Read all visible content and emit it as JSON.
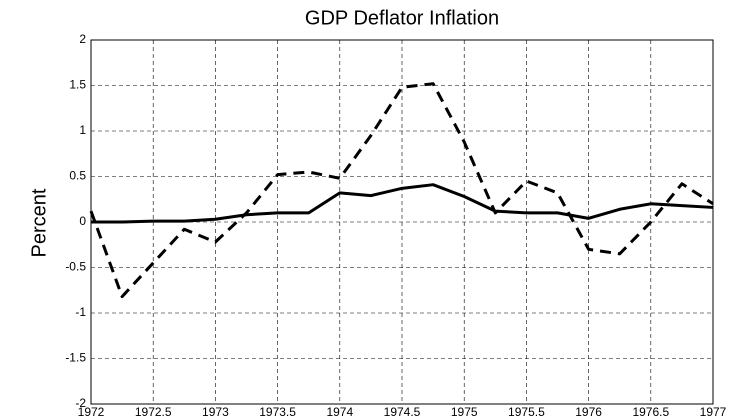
{
  "chart_data": {
    "type": "line",
    "title": "GDP Deflator Inflation",
    "y_label": "Percent",
    "x": [
      1972,
      1972.25,
      1972.5,
      1972.75,
      1973,
      1973.25,
      1973.5,
      1973.75,
      1974,
      1974.25,
      1974.5,
      1974.75,
      1975,
      1975.25,
      1975.5,
      1975.75,
      1976,
      1976.25,
      1976.5,
      1976.75,
      1977
    ],
    "series": [
      {
        "color": "#000000",
        "linestyle": "solid",
        "values": [
          0.0,
          0.0,
          0.01,
          0.01,
          0.03,
          0.08,
          0.1,
          0.1,
          0.32,
          0.29,
          0.37,
          0.41,
          0.28,
          0.12,
          0.1,
          0.1,
          0.04,
          0.14,
          0.2,
          0.18,
          0.16
        ]
      },
      {
        "color": "#000000",
        "linestyle": "dashed",
        "values": [
          0.12,
          -0.82,
          -0.45,
          -0.08,
          -0.22,
          0.1,
          0.52,
          0.55,
          0.48,
          0.95,
          1.48,
          1.52,
          0.88,
          0.1,
          0.45,
          0.32,
          -0.3,
          -0.35,
          0.0,
          0.42,
          0.2
        ]
      }
    ],
    "xlim": [
      1972,
      1977
    ],
    "xticks": [
      1972,
      1972.5,
      1973,
      1973.5,
      1974,
      1974.5,
      1975,
      1975.5,
      1976,
      1976.5,
      1977
    ],
    "ylim": [
      -2,
      2
    ],
    "yticks": [
      -2,
      -1.5,
      -1,
      -0.5,
      0,
      0.5,
      1,
      1.5,
      2
    ],
    "grid": true
  }
}
